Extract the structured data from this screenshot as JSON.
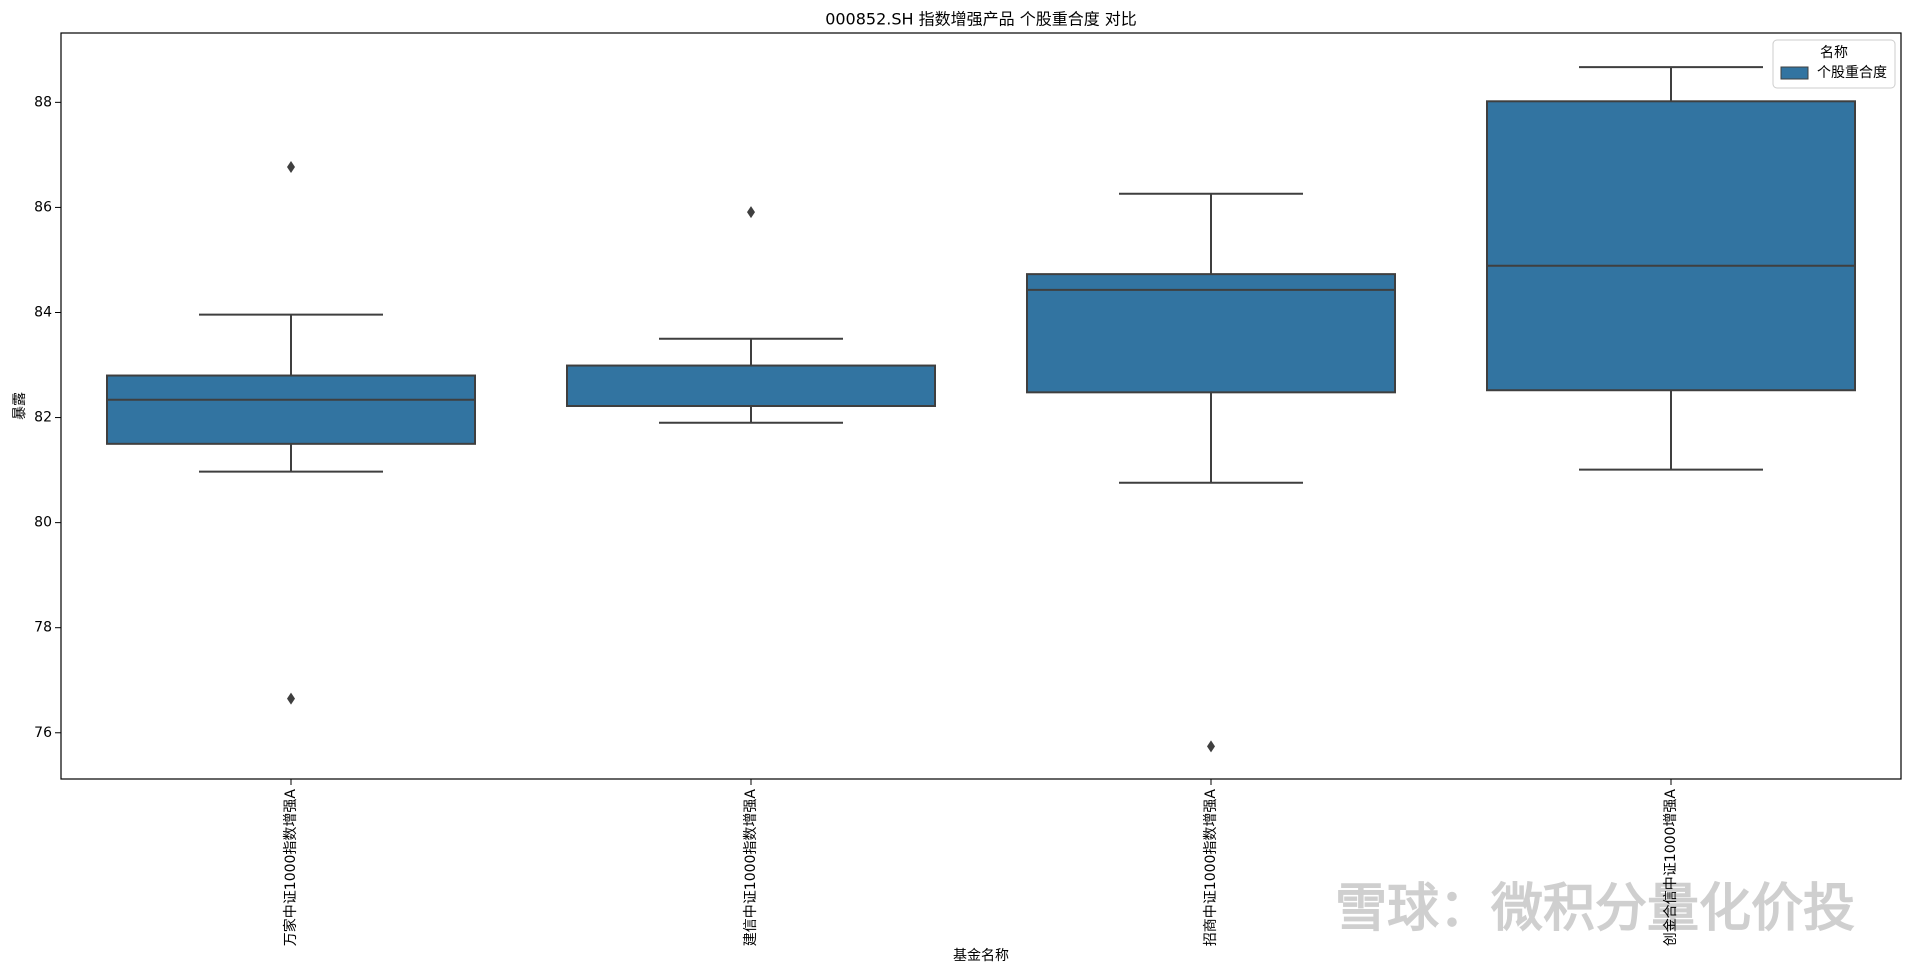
{
  "chart_data": {
    "type": "box",
    "title": "000852.SH 指数增强产品 个股重合度 对比",
    "x_label": "基金名称",
    "y_label": "暴露",
    "categories": [
      "万家中证1000指数增强A",
      "建信中证1000指数增强A",
      "招商中证1000指数增强A",
      "创金合信中证1000增强A"
    ],
    "series": [
      {
        "name": "个股重合度",
        "color": "#3274a1",
        "boxes": [
          {
            "whislo": 80.97,
            "q1": 81.5,
            "med": 82.34,
            "q3": 82.8,
            "whishi": 83.96,
            "fliers": [
              86.77,
              76.65
            ]
          },
          {
            "whislo": 81.9,
            "q1": 82.22,
            "med": 82.22,
            "q3": 82.99,
            "whishi": 83.5,
            "fliers": [
              85.91
            ]
          },
          {
            "whislo": 80.76,
            "q1": 82.48,
            "med": 84.43,
            "q3": 84.73,
            "whishi": 86.26,
            "fliers": [
              75.74
            ]
          },
          {
            "whislo": 81.01,
            "q1": 82.52,
            "med": 84.89,
            "q3": 88.02,
            "whishi": 88.67,
            "fliers": []
          }
        ]
      }
    ],
    "ylim": [
      75.12,
      89.32
    ],
    "yticks": [
      76,
      78,
      80,
      82,
      84,
      86,
      88
    ],
    "legend_title": "名称",
    "legend_position": "upper right",
    "watermark": "雪球：微积分量化价投"
  }
}
